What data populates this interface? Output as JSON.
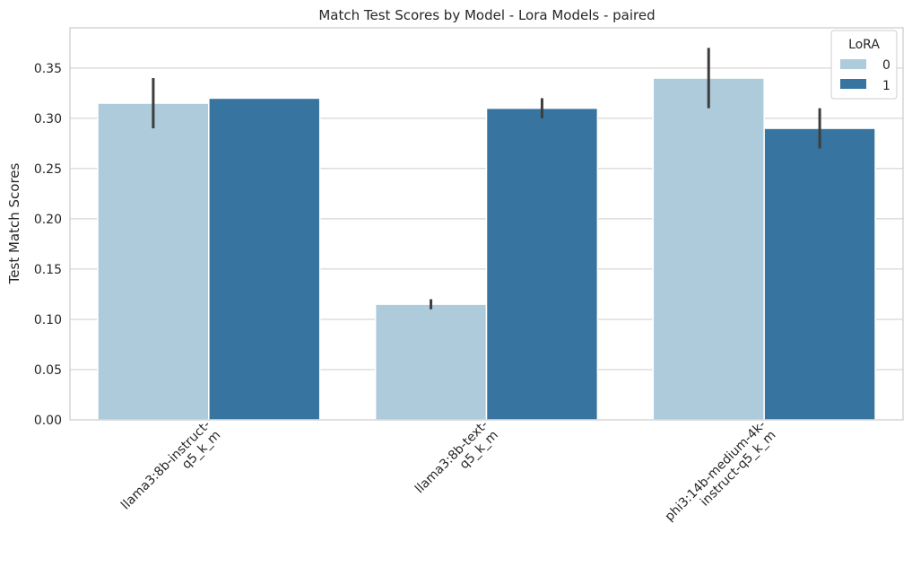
{
  "chart_data": {
    "type": "bar",
    "title": "Match Test Scores by Model - Lora Models - paired",
    "xlabel": "",
    "ylabel": "Test Match Scores",
    "ylim": [
      0,
      0.39
    ],
    "yticks": [
      "0.00",
      "0.05",
      "0.10",
      "0.15",
      "0.20",
      "0.25",
      "0.30",
      "0.35"
    ],
    "categories": [
      [
        "llama3:8b-instruct-",
        "q5_k_m"
      ],
      [
        "llama3:8b-text-",
        "q5_k_m"
      ],
      [
        "phi3:14b-medium-4k-",
        "instruct-q5_k_m"
      ]
    ],
    "legend": {
      "title": "LoRA",
      "position": "top-right"
    },
    "series": [
      {
        "name": "0",
        "color": "#aecbdc",
        "values": [
          0.315,
          0.115,
          0.34
        ],
        "err_low": [
          0.29,
          0.11,
          0.31
        ],
        "err_high": [
          0.34,
          0.12,
          0.37
        ]
      },
      {
        "name": "1",
        "color": "#3874a0",
        "values": [
          0.32,
          0.31,
          0.29
        ],
        "err_low": [
          0.32,
          0.3,
          0.27
        ],
        "err_high": [
          0.32,
          0.32,
          0.31
        ]
      }
    ],
    "grid": true
  }
}
